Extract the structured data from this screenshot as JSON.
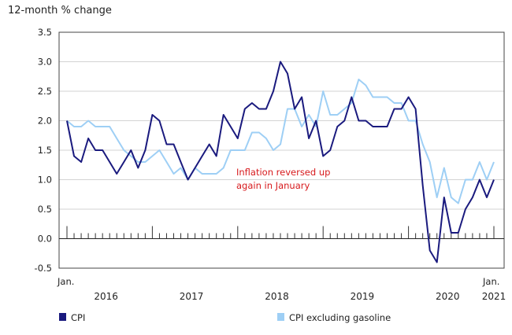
{
  "chart_data": {
    "type": "line",
    "ylabel": "12-month % change",
    "ylim": [
      -0.5,
      3.5
    ],
    "yticks": [
      "3.5",
      "3.0",
      "2.5",
      "2.0",
      "1.5",
      "1.0",
      "0.5",
      "0.0",
      "-0.5"
    ],
    "x_start_label": "Jan.",
    "x_end_label": "Jan.",
    "year_labels": [
      "2016",
      "2017",
      "2018",
      "2019",
      "2020",
      "2021"
    ],
    "annotation": [
      "Inflation reversed up",
      "again in January"
    ],
    "colors": {
      "cpi": "#1a1a7e",
      "cpi_ex_gas": "#9ecff5",
      "annotation": "#d7191c"
    },
    "months": [
      "2016-01",
      "2016-02",
      "2016-03",
      "2016-04",
      "2016-05",
      "2016-06",
      "2016-07",
      "2016-08",
      "2016-09",
      "2016-10",
      "2016-11",
      "2016-12",
      "2017-01",
      "2017-02",
      "2017-03",
      "2017-04",
      "2017-05",
      "2017-06",
      "2017-07",
      "2017-08",
      "2017-09",
      "2017-10",
      "2017-11",
      "2017-12",
      "2018-01",
      "2018-02",
      "2018-03",
      "2018-04",
      "2018-05",
      "2018-06",
      "2018-07",
      "2018-08",
      "2018-09",
      "2018-10",
      "2018-11",
      "2018-12",
      "2019-01",
      "2019-02",
      "2019-03",
      "2019-04",
      "2019-05",
      "2019-06",
      "2019-07",
      "2019-08",
      "2019-09",
      "2019-10",
      "2019-11",
      "2019-12",
      "2020-01",
      "2020-02",
      "2020-03",
      "2020-04",
      "2020-05",
      "2020-06",
      "2020-07",
      "2020-08",
      "2020-09",
      "2020-10",
      "2020-11",
      "2020-12",
      "2021-01"
    ],
    "series": [
      {
        "name": "CPI",
        "values": [
          2.0,
          1.4,
          1.3,
          1.7,
          1.5,
          1.5,
          1.3,
          1.1,
          1.3,
          1.5,
          1.2,
          1.5,
          2.1,
          2.0,
          1.6,
          1.6,
          1.3,
          1.0,
          1.2,
          1.4,
          1.6,
          1.4,
          2.1,
          1.9,
          1.7,
          2.2,
          2.3,
          2.2,
          2.2,
          2.5,
          3.0,
          2.8,
          2.2,
          2.4,
          1.7,
          2.0,
          1.4,
          1.5,
          1.9,
          2.0,
          2.4,
          2.0,
          2.0,
          1.9,
          1.9,
          1.9,
          2.2,
          2.2,
          2.4,
          2.2,
          0.9,
          -0.2,
          -0.4,
          0.7,
          0.1,
          0.1,
          0.5,
          0.7,
          1.0,
          0.7,
          1.0
        ]
      },
      {
        "name": "CPI excluding gasoline",
        "values": [
          2.0,
          1.9,
          1.9,
          2.0,
          1.9,
          1.9,
          1.9,
          1.7,
          1.5,
          1.4,
          1.3,
          1.3,
          1.4,
          1.5,
          1.3,
          1.1,
          1.2,
          1.0,
          1.2,
          1.1,
          1.1,
          1.1,
          1.2,
          1.5,
          1.5,
          1.5,
          1.8,
          1.8,
          1.7,
          1.5,
          1.6,
          2.2,
          2.2,
          1.9,
          2.1,
          1.9,
          2.5,
          2.1,
          2.1,
          2.2,
          2.3,
          2.7,
          2.6,
          2.4,
          2.4,
          2.4,
          2.3,
          2.3,
          2.0,
          2.0,
          1.6,
          1.3,
          0.7,
          1.2,
          0.7,
          0.6,
          1.0,
          1.0,
          1.3,
          1.0,
          1.3
        ]
      }
    ]
  }
}
